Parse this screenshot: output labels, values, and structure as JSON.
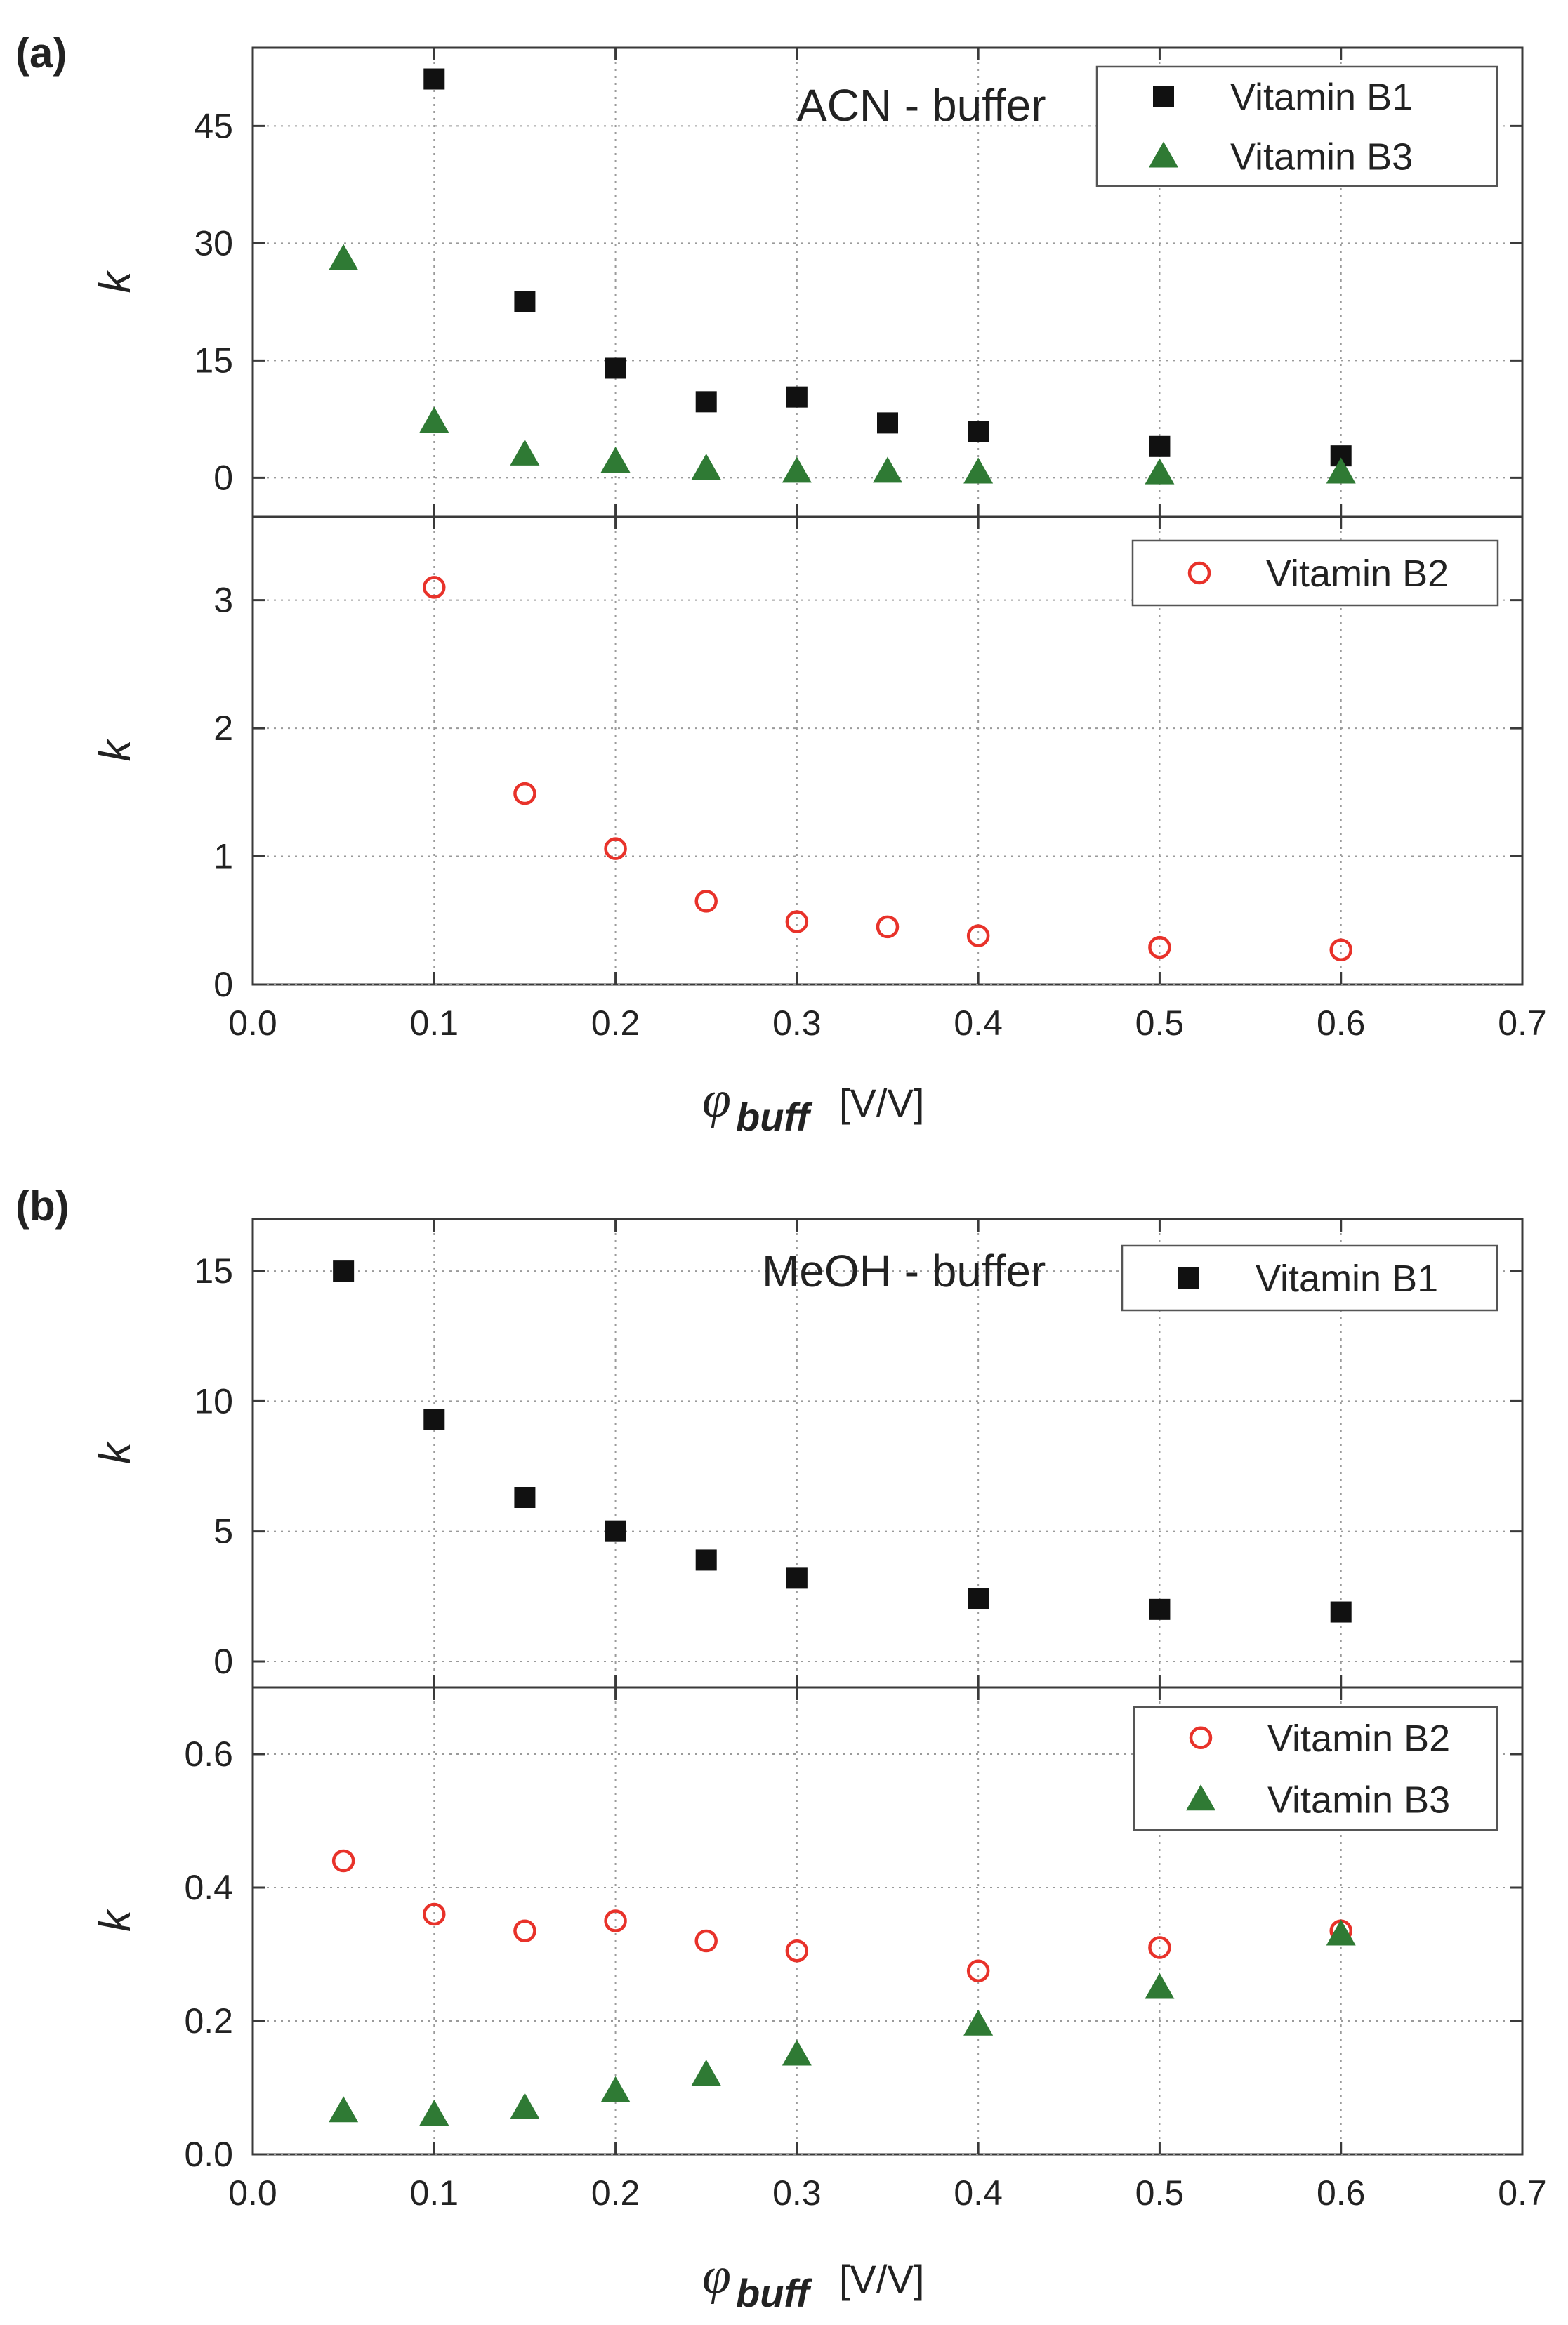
{
  "colors": {
    "b1": "#111111",
    "b2": "#e8322a",
    "b3": "#2f7a34",
    "axis": "#3a3a3a",
    "grid": "#9a9a9a"
  },
  "chart_data": [
    {
      "type": "scatter",
      "panel_label": "(a)",
      "annotation": "ACN - buffer",
      "x_axis": {
        "label_symbol": "φ",
        "label_subscript": "buff",
        "label_unit": "[V/V]",
        "range": [
          0.0,
          0.7
        ],
        "ticks": [
          "0.0",
          "0.1",
          "0.2",
          "0.3",
          "0.4",
          "0.5",
          "0.6",
          "0.7"
        ]
      },
      "subplots": [
        {
          "ylabel": "k",
          "ylim": [
            -5,
            55
          ],
          "yticks": [
            "0",
            "15",
            "30",
            "45"
          ],
          "grid": "vertical dotted",
          "legend": [
            {
              "label": "Vitamin B1",
              "marker": "square",
              "color": "#111111"
            },
            {
              "label": "Vitamin B3",
              "marker": "triangle",
              "color": "#2f7a34"
            }
          ],
          "series": [
            {
              "name": "Vitamin B1",
              "marker": "square",
              "x": [
                0.1,
                0.15,
                0.2,
                0.25,
                0.3,
                0.35,
                0.4,
                0.5,
                0.6
              ],
              "y": [
                51.0,
                22.5,
                14.0,
                9.7,
                10.3,
                7.0,
                5.9,
                4.0,
                2.8
              ]
            },
            {
              "name": "Vitamin B3",
              "marker": "triangle",
              "x": [
                0.05,
                0.1,
                0.15,
                0.2,
                0.25,
                0.3,
                0.35,
                0.4,
                0.5,
                0.6
              ],
              "y": [
                28.0,
                7.2,
                3.0,
                2.1,
                1.2,
                0.8,
                0.8,
                0.7,
                0.6,
                0.7
              ]
            }
          ]
        },
        {
          "ylabel": "k",
          "ylim": [
            0,
            3.65
          ],
          "yticks": [
            "0",
            "1",
            "2",
            "3"
          ],
          "grid": "vertical dotted",
          "legend": [
            {
              "label": "Vitamin B2",
              "marker": "open-circle",
              "color": "#e8322a"
            }
          ],
          "series": [
            {
              "name": "Vitamin B2",
              "marker": "open-circle",
              "x": [
                0.1,
                0.15,
                0.2,
                0.25,
                0.3,
                0.35,
                0.4,
                0.5,
                0.6
              ],
              "y": [
                3.1,
                1.49,
                1.06,
                0.65,
                0.49,
                0.45,
                0.38,
                0.29,
                0.27
              ]
            }
          ]
        }
      ]
    },
    {
      "type": "scatter",
      "panel_label": "(b)",
      "annotation": "MeOH - buffer",
      "x_axis": {
        "label_symbol": "φ",
        "label_subscript": "buff",
        "label_unit": "[V/V]",
        "range": [
          0.0,
          0.7
        ],
        "ticks": [
          "0.0",
          "0.1",
          "0.2",
          "0.3",
          "0.4",
          "0.5",
          "0.6",
          "0.7"
        ]
      },
      "subplots": [
        {
          "ylabel": "k",
          "ylim": [
            -1,
            17
          ],
          "yticks": [
            "0",
            "5",
            "10",
            "15"
          ],
          "grid": "vertical dotted",
          "legend": [
            {
              "label": "Vitamin B1",
              "marker": "square",
              "color": "#111111"
            }
          ],
          "series": [
            {
              "name": "Vitamin B1",
              "marker": "square",
              "x": [
                0.05,
                0.1,
                0.15,
                0.2,
                0.25,
                0.3,
                0.4,
                0.5,
                0.6
              ],
              "y": [
                15.0,
                9.3,
                6.3,
                5.0,
                3.9,
                3.2,
                2.4,
                2.0,
                1.9
              ]
            }
          ]
        },
        {
          "ylabel": "k",
          "ylim": [
            0,
            0.7
          ],
          "yticks": [
            "0.0",
            "0.2",
            "0.4",
            "0.6"
          ],
          "grid": "vertical dotted",
          "legend": [
            {
              "label": "Vitamin B2",
              "marker": "open-circle",
              "color": "#e8322a"
            },
            {
              "label": "Vitamin B3",
              "marker": "triangle",
              "color": "#2f7a34"
            }
          ],
          "series": [
            {
              "name": "Vitamin B2",
              "marker": "open-circle",
              "x": [
                0.05,
                0.1,
                0.15,
                0.2,
                0.25,
                0.3,
                0.4,
                0.5,
                0.6
              ],
              "y": [
                0.44,
                0.36,
                0.335,
                0.35,
                0.32,
                0.305,
                0.275,
                0.31,
                0.335
              ]
            },
            {
              "name": "Vitamin B3",
              "marker": "triangle",
              "x": [
                0.05,
                0.1,
                0.15,
                0.2,
                0.25,
                0.3,
                0.4,
                0.5,
                0.6
              ],
              "y": [
                0.065,
                0.06,
                0.07,
                0.095,
                0.12,
                0.15,
                0.195,
                0.25,
                0.33
              ]
            }
          ]
        }
      ]
    }
  ]
}
